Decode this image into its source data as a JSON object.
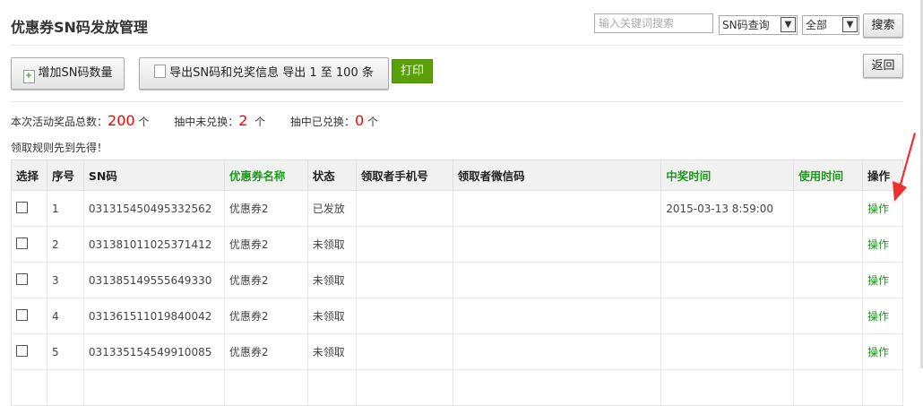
{
  "header": {
    "title": "优惠券SN码发放管理",
    "search_placeholder": "输入关键词搜索",
    "search_type": "SN码查询",
    "filter": "全部",
    "search_label": "搜索"
  },
  "toolbar": {
    "add_label": "增加SN码数量",
    "export_label": "导出SN码和兑奖信息 导出 1 至 100 条",
    "print_label": "打印",
    "back_label": "返回"
  },
  "stats": {
    "total_label": "本次活动奖品总数：",
    "total": "200",
    "unit": "个",
    "unredeemed_label": "抽中未兑换：",
    "unredeemed": "2",
    "redeemed_label": "抽中已兑换：",
    "redeemed": "0"
  },
  "rule": "领取规则先到先得！",
  "table": {
    "headers": [
      "选择",
      "序号",
      "SN码",
      "优惠券名称",
      "状态",
      "领取者手机号",
      "领取者微信码",
      "中奖时间",
      "使用时间",
      "操作"
    ],
    "rows": [
      {
        "no": "1",
        "sn": "031315450495332562",
        "name": "优惠券2",
        "status": "已发放",
        "phone": "",
        "wechat": "",
        "win_time": "2015-03-13 8:59:00",
        "use_time": "",
        "op": "操作"
      },
      {
        "no": "2",
        "sn": "031381011025371412",
        "name": "优惠券2",
        "status": "未领取",
        "phone": "",
        "wechat": "",
        "win_time": "",
        "use_time": "",
        "op": "操作"
      },
      {
        "no": "3",
        "sn": "031385149555649330",
        "name": "优惠券2",
        "status": "未领取",
        "phone": "",
        "wechat": "",
        "win_time": "",
        "use_time": "",
        "op": "操作"
      },
      {
        "no": "4",
        "sn": "031361511019840042",
        "name": "优惠券2",
        "status": "未领取",
        "phone": "",
        "wechat": "",
        "win_time": "",
        "use_time": "",
        "op": "操作"
      },
      {
        "no": "5",
        "sn": "031335154549910085",
        "name": "优惠券2",
        "status": "未领取",
        "phone": "",
        "wechat": "",
        "win_time": "",
        "use_time": "",
        "op": "操作"
      }
    ]
  },
  "colors": {
    "accent_green": "#5ba10b",
    "highlight_red": "#ff0000",
    "arrow": "#f03030"
  }
}
